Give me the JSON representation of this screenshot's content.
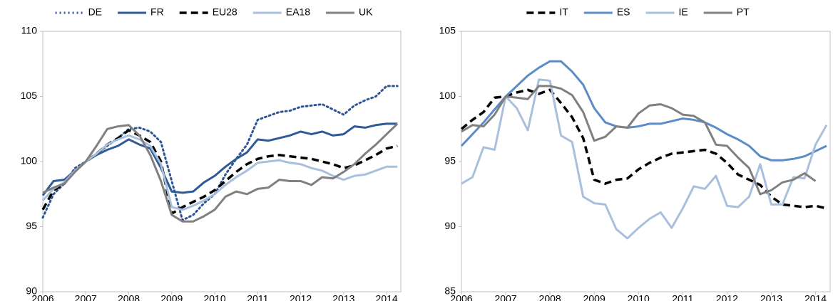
{
  "chart_data": [
    {
      "type": "line",
      "x": [
        2006,
        2006.25,
        2006.5,
        2006.75,
        2007,
        2007.25,
        2007.5,
        2007.75,
        2008,
        2008.25,
        2008.5,
        2008.75,
        2009,
        2009.25,
        2009.5,
        2009.75,
        2010,
        2010.25,
        2010.5,
        2010.75,
        2011,
        2011.25,
        2011.5,
        2011.75,
        2012,
        2012.25,
        2012.5,
        2012.75,
        2013,
        2013.25,
        2013.5,
        2013.75,
        2014,
        2014.25
      ],
      "xlim": [
        2006,
        2014.33
      ],
      "xticks": [
        2006,
        2007,
        2008,
        2009,
        2010,
        2011,
        2012,
        2013,
        2014
      ],
      "ylim": [
        90,
        110
      ],
      "yticks": [
        90,
        95,
        100,
        105,
        110
      ],
      "grid": false,
      "legend": "top",
      "series": [
        {
          "name": "DE",
          "color": "#2f5597",
          "dash": "dotted",
          "values": [
            95.7,
            97.5,
            98.3,
            99.5,
            100,
            100.6,
            101.2,
            101.8,
            102.5,
            102.6,
            102.3,
            101.5,
            98.5,
            95.5,
            95.9,
            96.8,
            97.5,
            99,
            100.2,
            101.3,
            103.2,
            103.5,
            103.8,
            103.9,
            104.2,
            104.3,
            104.4,
            104.0,
            103.6,
            104.3,
            104.7,
            105.0,
            105.8,
            105.8
          ]
        },
        {
          "name": "FR",
          "color": "#2e5a96",
          "dash": "solid",
          "values": [
            97.4,
            98.5,
            98.6,
            99.3,
            100,
            100.5,
            100.9,
            101.2,
            101.7,
            101.3,
            101.0,
            99.5,
            97.7,
            97.6,
            97.7,
            98.4,
            98.9,
            99.6,
            100.2,
            100.7,
            101.7,
            101.6,
            101.8,
            102.0,
            102.3,
            102.1,
            102.3,
            102.0,
            102.1,
            102.7,
            102.6,
            102.8,
            102.9,
            102.9
          ]
        },
        {
          "name": "EU28",
          "color": "#000000",
          "dash": "dashed",
          "values": [
            96.3,
            97.8,
            98.3,
            99.3,
            100,
            100.6,
            101.3,
            101.8,
            102.4,
            102.0,
            101.5,
            100.0,
            96.0,
            96.5,
            96.9,
            97.3,
            97.8,
            98.5,
            99.2,
            99.8,
            100.2,
            100.4,
            100.5,
            100.4,
            100.3,
            100.2,
            100.0,
            99.8,
            99.5,
            99.7,
            100.1,
            100.5,
            101.0,
            101.2
          ]
        },
        {
          "name": "EA18",
          "color": "#a9c0dd",
          "dash": "solid",
          "values": [
            97.0,
            97.9,
            98.4,
            99.3,
            100,
            100.6,
            101.3,
            101.7,
            102.0,
            101.7,
            101.2,
            99.8,
            96.5,
            96.3,
            96.6,
            97.0,
            97.5,
            98.2,
            98.8,
            99.3,
            99.9,
            100.0,
            100.1,
            99.9,
            99.8,
            99.5,
            99.3,
            98.9,
            98.6,
            98.9,
            99.0,
            99.3,
            99.6,
            99.6
          ]
        },
        {
          "name": "UK",
          "color": "#808080",
          "dash": "solid",
          "values": [
            97.6,
            98.0,
            98.3,
            99.2,
            100,
            101.2,
            102.5,
            102.7,
            102.8,
            102.0,
            100.5,
            98.5,
            95.9,
            95.4,
            95.4,
            95.8,
            96.3,
            97.3,
            97.7,
            97.5,
            97.9,
            98.0,
            98.6,
            98.5,
            98.5,
            98.2,
            98.8,
            98.7,
            99.2,
            99.8,
            100.6,
            101.3,
            102.1,
            102.9
          ]
        }
      ]
    },
    {
      "type": "line",
      "x": [
        2006,
        2006.25,
        2006.5,
        2006.75,
        2007,
        2007.25,
        2007.5,
        2007.75,
        2008,
        2008.25,
        2008.5,
        2008.75,
        2009,
        2009.25,
        2009.5,
        2009.75,
        2010,
        2010.25,
        2010.5,
        2010.75,
        2011,
        2011.25,
        2011.5,
        2011.75,
        2012,
        2012.25,
        2012.5,
        2012.75,
        2013,
        2013.25,
        2013.5,
        2013.75,
        2014,
        2014.25
      ],
      "xlim": [
        2006,
        2014.33
      ],
      "xticks": [
        2006,
        2007,
        2008,
        2009,
        2010,
        2011,
        2012,
        2013,
        2014
      ],
      "ylim": [
        85,
        105
      ],
      "yticks": [
        85,
        90,
        95,
        100,
        105
      ],
      "grid": false,
      "legend": "top",
      "series": [
        {
          "name": "IT",
          "color": "#000000",
          "dash": "dashed",
          "values": [
            97.5,
            98.2,
            98.8,
            99.9,
            100,
            100.3,
            100.5,
            100.2,
            100.5,
            99.5,
            98.4,
            96.8,
            93.6,
            93.3,
            93.6,
            93.7,
            94.4,
            94.9,
            95.3,
            95.6,
            95.7,
            95.8,
            95.9,
            95.6,
            94.9,
            94.0,
            93.6,
            93.2,
            92.3,
            91.7,
            91.6,
            91.5,
            91.6,
            91.4
          ]
        },
        {
          "name": "ES",
          "color": "#5b8cc8",
          "dash": "solid",
          "values": [
            96.2,
            97.1,
            98.0,
            99.0,
            100,
            100.8,
            101.6,
            102.2,
            102.7,
            102.7,
            101.9,
            100.9,
            99.1,
            98.0,
            97.7,
            97.6,
            97.7,
            97.9,
            97.9,
            98.1,
            98.3,
            98.2,
            98.0,
            97.6,
            97.1,
            96.7,
            96.2,
            95.4,
            95.1,
            95.1,
            95.2,
            95.4,
            95.8,
            96.2
          ]
        },
        {
          "name": "IE",
          "color": "#a9c0dd",
          "dash": "solid",
          "values": [
            93.3,
            93.8,
            96.1,
            95.9,
            100,
            99.1,
            97.4,
            101.3,
            101.2,
            97.0,
            96.5,
            92.3,
            91.8,
            91.7,
            89.8,
            89.1,
            89.9,
            90.6,
            91.1,
            89.9,
            91.4,
            93.1,
            92.9,
            93.9,
            91.6,
            91.5,
            92.3,
            94.8,
            91.7,
            91.7,
            93.8,
            93.7,
            96.3,
            97.8
          ]
        },
        {
          "name": "PT",
          "color": "#808080",
          "dash": "solid",
          "values": [
            97.3,
            97.8,
            97.7,
            98.6,
            100,
            99.9,
            99.8,
            100.8,
            100.8,
            100.6,
            100.1,
            98.8,
            96.6,
            96.9,
            97.7,
            97.6,
            98.7,
            99.3,
            99.4,
            99.1,
            98.6,
            98.5,
            98.0,
            96.3,
            96.2,
            95.3,
            94.5,
            92.5,
            92.8,
            93.4,
            93.6,
            94.1,
            93.5,
            null
          ]
        }
      ]
    }
  ]
}
